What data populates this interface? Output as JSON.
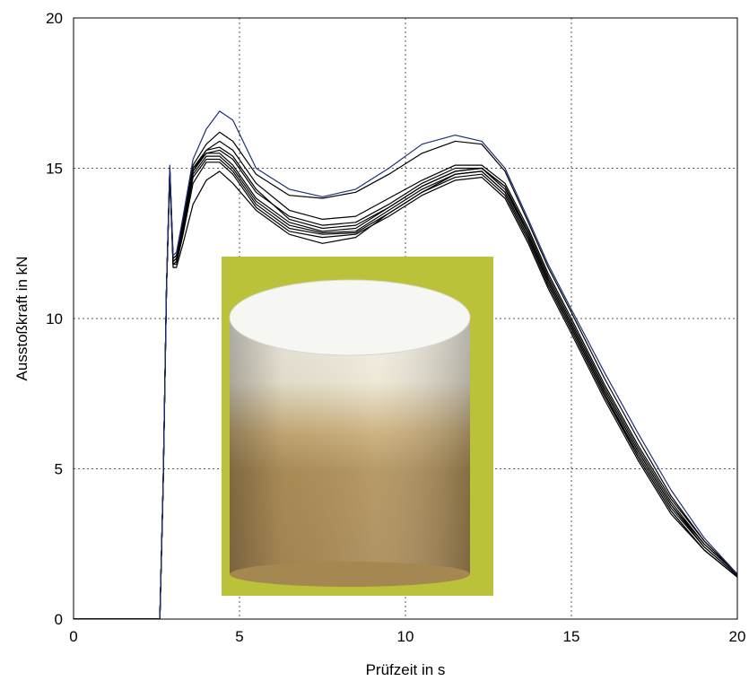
{
  "chart_data": {
    "type": "line",
    "xlabel": "Prüfzeit in s",
    "ylabel": "Ausstoßkraft in kN",
    "xlim": [
      0,
      20
    ],
    "ylim": [
      0,
      20
    ],
    "xticks": [
      "0",
      "5",
      "10",
      "15",
      "20"
    ],
    "yticks": [
      "0",
      "5",
      "10",
      "15",
      "20"
    ],
    "grid": true,
    "inset_image": "specimen-photo",
    "colors": {
      "reference": "#1f2f7a",
      "curves": "#000000",
      "inset_background": "#b9c238"
    },
    "series": [
      {
        "color": "#1f2f7a",
        "x": [
          0,
          2.6,
          2.7,
          2.8,
          2.9,
          3.0,
          3.1,
          3.3,
          3.6,
          4.0,
          4.4,
          4.8,
          5.5,
          6.5,
          7.5,
          8.5,
          9.5,
          10.5,
          11.5,
          12.3,
          13.0,
          13.7,
          14.3,
          15.0,
          16.0,
          17.0,
          18.0,
          19.0,
          20.0
        ],
        "y": [
          0,
          0,
          4.5,
          11.0,
          15.1,
          12.1,
          12.2,
          13.4,
          15.3,
          16.3,
          16.9,
          16.6,
          15.0,
          14.3,
          14.05,
          14.3,
          15.0,
          15.8,
          16.1,
          15.9,
          15.0,
          13.3,
          11.8,
          10.3,
          8.2,
          6.2,
          4.3,
          2.7,
          1.5
        ]
      },
      {
        "color": "#000000",
        "x": [
          0,
          2.6,
          2.7,
          2.8,
          2.9,
          3.0,
          3.1,
          3.3,
          3.6,
          4.0,
          4.4,
          4.8,
          5.5,
          6.5,
          7.5,
          8.5,
          9.5,
          10.5,
          11.5,
          12.3,
          13.0,
          13.7,
          14.3,
          15.0,
          16.0,
          17.0,
          18.0,
          19.0,
          20.0
        ],
        "y": [
          0,
          0,
          4.5,
          11.0,
          15.0,
          12.0,
          12.1,
          13.3,
          15.1,
          15.8,
          16.2,
          15.9,
          14.8,
          14.1,
          14.0,
          14.2,
          14.8,
          15.5,
          15.9,
          15.8,
          14.9,
          13.2,
          11.7,
          10.2,
          8.0,
          6.0,
          4.1,
          2.6,
          1.5
        ]
      },
      {
        "color": "#000000",
        "x": [
          0,
          2.6,
          2.7,
          2.8,
          2.9,
          3.0,
          3.1,
          3.3,
          3.6,
          4.0,
          4.4,
          4.8,
          5.5,
          6.5,
          7.5,
          8.5,
          9.5,
          10.5,
          11.5,
          12.3,
          13.0,
          13.7,
          14.3,
          15.0,
          16.0,
          17.0,
          18.0,
          19.0,
          20.0
        ],
        "y": [
          0,
          0,
          4.5,
          11.0,
          15.0,
          12.0,
          12.1,
          13.2,
          15.0,
          15.6,
          15.9,
          15.6,
          14.5,
          13.6,
          13.3,
          13.4,
          14.0,
          14.6,
          15.1,
          15.1,
          14.5,
          13.0,
          11.5,
          10.0,
          7.8,
          5.8,
          4.0,
          2.6,
          1.5
        ]
      },
      {
        "color": "#000000",
        "x": [
          0,
          2.6,
          2.7,
          2.8,
          2.9,
          3.0,
          3.1,
          3.3,
          3.6,
          4.0,
          4.4,
          4.8,
          5.5,
          6.5,
          7.5,
          8.5,
          9.5,
          10.5,
          11.5,
          12.3,
          13.0,
          13.7,
          14.3,
          15.0,
          16.0,
          17.0,
          18.0,
          19.0,
          20.0
        ],
        "y": [
          0,
          0,
          4.5,
          11.0,
          15.0,
          11.9,
          12.0,
          13.2,
          15.0,
          15.5,
          15.6,
          15.3,
          14.2,
          13.4,
          13.1,
          13.2,
          13.8,
          14.5,
          15.0,
          15.0,
          14.4,
          12.9,
          11.4,
          9.9,
          7.7,
          5.7,
          3.9,
          2.5,
          1.5
        ]
      },
      {
        "color": "#000000",
        "x": [
          0,
          2.6,
          2.7,
          2.8,
          2.9,
          3.0,
          3.1,
          3.3,
          3.6,
          4.0,
          4.4,
          4.8,
          5.5,
          6.5,
          7.5,
          8.5,
          9.5,
          10.5,
          11.5,
          12.3,
          13.0,
          13.7,
          14.3,
          15.0,
          16.0,
          17.0,
          18.0,
          19.0,
          20.0
        ],
        "y": [
          0,
          0,
          4.5,
          11.0,
          15.0,
          11.9,
          12.0,
          13.1,
          14.9,
          15.5,
          15.5,
          15.1,
          14.0,
          13.2,
          12.9,
          13.0,
          13.7,
          14.4,
          14.9,
          15.0,
          14.3,
          12.8,
          11.3,
          9.8,
          7.6,
          5.6,
          3.8,
          2.5,
          1.5
        ]
      },
      {
        "color": "#000000",
        "x": [
          0,
          2.6,
          2.7,
          2.8,
          2.9,
          3.0,
          3.1,
          3.3,
          3.6,
          4.0,
          4.4,
          4.8,
          5.5,
          6.5,
          7.5,
          8.5,
          9.5,
          10.5,
          11.5,
          12.3,
          13.0,
          13.7,
          14.3,
          15.0,
          16.0,
          17.0,
          18.0,
          19.0,
          20.0
        ],
        "y": [
          0,
          0,
          4.5,
          11.0,
          14.9,
          11.8,
          11.9,
          13.0,
          14.8,
          15.4,
          15.4,
          15.0,
          13.9,
          13.1,
          12.85,
          12.9,
          13.6,
          14.3,
          14.8,
          14.9,
          14.2,
          12.7,
          11.2,
          9.7,
          7.5,
          5.5,
          3.7,
          2.4,
          1.45
        ]
      },
      {
        "color": "#000000",
        "x": [
          0,
          2.6,
          2.7,
          2.8,
          2.9,
          3.0,
          3.1,
          3.3,
          3.6,
          4.0,
          4.4,
          4.8,
          5.5,
          6.5,
          7.5,
          8.5,
          9.5,
          10.5,
          11.5,
          12.3,
          13.0,
          13.7,
          14.3,
          15.0,
          16.0,
          17.0,
          18.0,
          19.0,
          20.0
        ],
        "y": [
          0,
          0,
          4.5,
          11.0,
          14.9,
          11.8,
          11.9,
          12.9,
          14.7,
          15.3,
          15.3,
          14.9,
          13.8,
          13.0,
          12.8,
          12.85,
          13.5,
          14.2,
          14.7,
          14.8,
          14.1,
          12.6,
          11.1,
          9.6,
          7.4,
          5.4,
          3.6,
          2.3,
          1.4
        ]
      },
      {
        "color": "#000000",
        "x": [
          0,
          2.6,
          2.7,
          2.8,
          2.9,
          3.0,
          3.1,
          3.3,
          3.6,
          4.0,
          4.4,
          4.8,
          5.5,
          6.5,
          7.5,
          8.5,
          9.5,
          10.5,
          11.5,
          12.3,
          13.0,
          13.7,
          14.3,
          15.0,
          16.0,
          17.0,
          18.0,
          19.0,
          20.0
        ],
        "y": [
          0,
          0,
          4.5,
          11.0,
          14.9,
          11.8,
          11.8,
          12.8,
          14.5,
          15.2,
          15.2,
          14.8,
          13.7,
          12.9,
          12.7,
          12.8,
          13.4,
          14.1,
          14.6,
          14.7,
          14.0,
          12.5,
          11.0,
          9.5,
          7.3,
          5.3,
          3.5,
          2.3,
          1.4
        ]
      },
      {
        "color": "#000000",
        "x": [
          0,
          2.6,
          2.7,
          2.8,
          2.9,
          3.0,
          3.1,
          3.3,
          3.6,
          4.0,
          4.4,
          4.8,
          5.5,
          6.5,
          7.5,
          8.5,
          9.5,
          10.5,
          11.5,
          12.3,
          13.0,
          13.7,
          14.3,
          15.0,
          16.0,
          17.0,
          18.0,
          19.0,
          20.0
        ],
        "y": [
          0,
          0,
          4.5,
          11.0,
          14.8,
          11.7,
          11.7,
          12.5,
          13.8,
          14.6,
          14.9,
          14.5,
          13.6,
          12.8,
          12.5,
          12.7,
          13.5,
          14.2,
          14.8,
          14.9,
          14.2,
          12.7,
          11.2,
          9.7,
          7.5,
          5.4,
          3.6,
          2.3,
          1.4
        ]
      },
      {
        "color": "#000000",
        "x": [
          0,
          2.6,
          2.7,
          2.8,
          2.9,
          3.0,
          3.1,
          3.3,
          3.6,
          4.0,
          4.4,
          4.8,
          5.5,
          6.5,
          7.5,
          8.5,
          9.5,
          10.5,
          11.5,
          12.3,
          13.0,
          13.7,
          14.3,
          15.0,
          16.0,
          17.0,
          18.0,
          19.0,
          20.0
        ],
        "y": [
          0,
          0,
          4.5,
          11.0,
          14.9,
          11.9,
          12.0,
          13.1,
          14.9,
          15.6,
          15.7,
          15.4,
          14.3,
          13.3,
          13.0,
          13.1,
          13.7,
          14.4,
          14.9,
          15.0,
          14.4,
          12.8,
          11.3,
          9.8,
          7.6,
          5.6,
          3.8,
          2.4,
          1.45
        ]
      }
    ]
  }
}
